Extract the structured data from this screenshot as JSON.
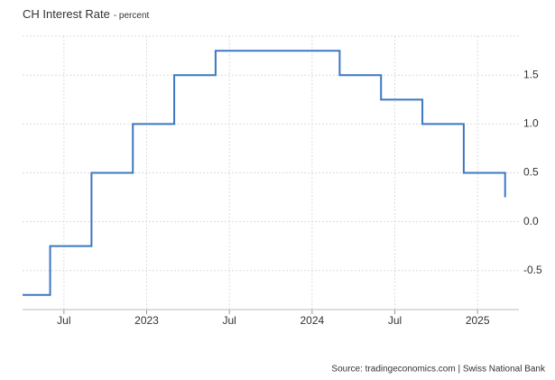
{
  "chart_data": {
    "type": "step-line",
    "title": "CH Interest Rate",
    "subtitle": "- percent",
    "source": "Source: tradingeconomics.com | Swiss National Bank",
    "x": [
      "2022-04",
      "2022-06",
      "2022-09",
      "2022-12",
      "2023-03",
      "2023-06",
      "2024-03",
      "2024-06",
      "2024-09",
      "2024-12",
      "2025-03"
    ],
    "values": [
      -0.75,
      -0.25,
      0.5,
      1,
      1.5,
      1.75,
      1.5,
      1.25,
      1,
      0.5,
      0.25
    ],
    "color": "#3b78c2",
    "xlim": [
      "2022-04",
      "2025-04"
    ],
    "xticks": [
      {
        "value": "2022-07",
        "label": "Jul"
      },
      {
        "value": "2023-01",
        "label": "2023"
      },
      {
        "value": "2023-07",
        "label": "Jul"
      },
      {
        "value": "2024-01",
        "label": "2024"
      },
      {
        "value": "2024-07",
        "label": "Jul"
      },
      {
        "value": "2025-01",
        "label": "2025"
      }
    ],
    "ylim": [
      -0.9,
      1.9
    ],
    "yticks": [
      1.5,
      {
        "value": 1,
        "label": "1.0"
      },
      0.5,
      {
        "value": 0,
        "label": "0.0"
      },
      -0.5
    ],
    "grid": true
  }
}
